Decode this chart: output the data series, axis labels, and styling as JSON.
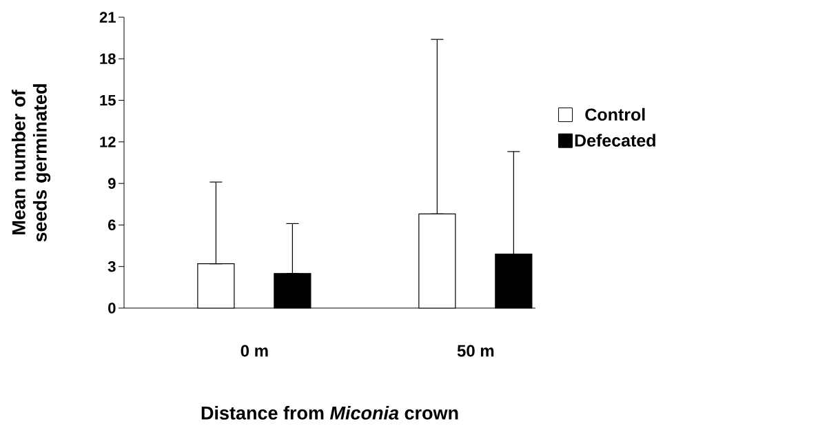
{
  "chart_data": {
    "type": "bar",
    "xlabel": "Distance from *Miconia* crown",
    "ylabel": "Mean number of seeds germinated",
    "categories": [
      "0 m",
      "50 m"
    ],
    "series": [
      {
        "name": "Control",
        "color": "#ffffff",
        "values": [
          3.2,
          6.8
        ],
        "errors": [
          [
            3.2,
            9.1
          ],
          [
            6.8,
            19.4
          ]
        ]
      },
      {
        "name": "Defecated",
        "color": "#000000",
        "values": [
          2.5,
          3.9
        ],
        "errors": [
          [
            2.5,
            6.1
          ],
          [
            3.9,
            11.3
          ]
        ]
      }
    ],
    "ylim": [
      0,
      21
    ],
    "yticks": [
      0,
      3,
      6,
      9,
      12,
      15,
      18,
      21
    ],
    "legend": "right"
  }
}
